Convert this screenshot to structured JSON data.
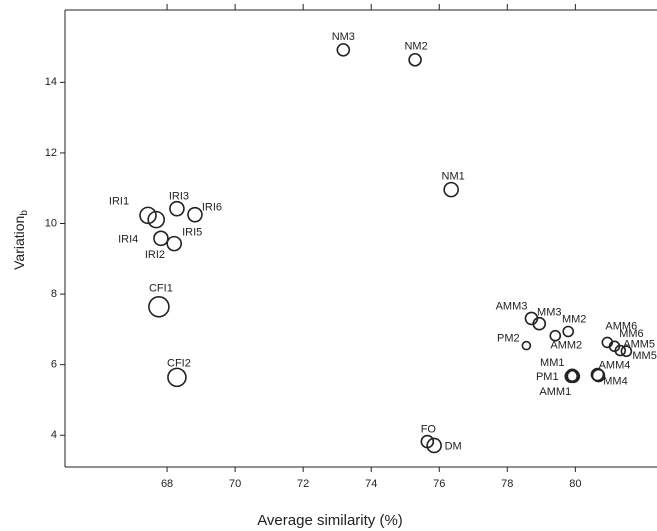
{
  "chart_data": {
    "type": "bubble",
    "x_label": "Average similarity (%)",
    "y_label": "Variation",
    "y_label_sub": "b",
    "labels": [
      "NM3",
      "NM2",
      "NM1",
      "IRI1",
      "IRI3",
      "IRI6",
      "IRI4",
      "IRI2",
      "IRI5",
      "CFI1",
      "CFI2",
      "FO",
      "DM",
      "AMM3",
      "MM3",
      "MM2",
      "AMM2",
      "PM2",
      "AMM6",
      "MM6",
      "AMM5",
      "MM5",
      "MM1",
      "PM1",
      "AMM1",
      "AMM4",
      "MM4"
    ],
    "x": [
      73.18,
      75.29,
      76.35,
      67.44,
      68.29,
      68.82,
      67.68,
      67.82,
      68.21,
      67.76,
      68.29,
      75.65,
      75.85,
      78.71,
      78.94,
      79.79,
      79.41,
      78.56,
      80.94,
      81.15,
      81.32,
      81.5,
      79.91,
      79.88,
      79.94,
      80.65,
      80.68
    ],
    "values": [
      14.92,
      14.64,
      10.96,
      10.23,
      10.42,
      10.25,
      10.11,
      9.58,
      9.43,
      7.64,
      5.64,
      3.82,
      3.71,
      7.31,
      7.16,
      6.94,
      6.82,
      6.54,
      6.63,
      6.52,
      6.4,
      6.38,
      5.7,
      5.67,
      5.67,
      5.72,
      5.69
    ],
    "sizes": [
      6,
      6,
      7,
      8,
      7,
      7,
      8,
      7,
      7,
      10,
      9,
      6,
      7,
      6,
      6,
      5,
      5,
      4,
      5,
      5,
      5,
      5,
      6,
      6,
      6,
      6,
      6
    ],
    "color": "#222222",
    "xlim": [
      65,
      82.4
    ],
    "ylim": [
      3.1,
      16.05
    ],
    "xticks": [
      68,
      70,
      72,
      74,
      76,
      78,
      80
    ],
    "yticks": [
      4,
      6,
      8,
      10,
      12,
      14
    ]
  }
}
